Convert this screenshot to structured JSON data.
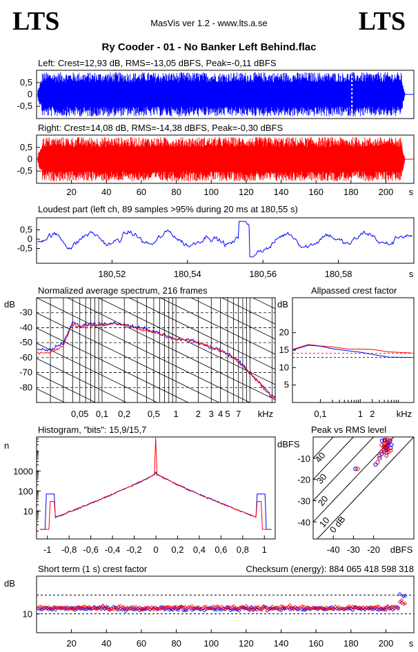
{
  "header": {
    "logo_left": "LTS",
    "logo_right": "LTS",
    "app_title": "MasVis ver 1.2 - www.lts.a.se",
    "track_title": "Ry Cooder - 01 - No Banker Left Behind.flac"
  },
  "colors": {
    "left": "#0000ff",
    "right": "#ff0000",
    "frame": "#000000"
  },
  "chart_data": [
    {
      "type": "area",
      "name": "left-waveform",
      "title": "Left: Crest=12,93 dB, RMS=-13,05 dBFS, Peak=-0,11 dBFS",
      "yticks": [
        "0,5",
        "0",
        "-0,5"
      ],
      "ylim": [
        -1,
        1
      ],
      "xlim": [
        0,
        216
      ],
      "marker_x": 180.55
    },
    {
      "type": "area",
      "name": "right-waveform",
      "title": "Right: Crest=14,08 dB, RMS=-14,38 dBFS, Peak=-0,30 dBFS",
      "yticks": [
        "0,5",
        "0",
        "-0,5"
      ],
      "ylim": [
        -1,
        1
      ],
      "xlim": [
        0,
        216
      ],
      "xticks": [
        "20",
        "40",
        "60",
        "80",
        "100",
        "120",
        "140",
        "160",
        "180",
        "200"
      ],
      "xunit": "s"
    },
    {
      "type": "line",
      "name": "loudest-part",
      "title": "Loudest part (left  ch, 89 samples >95% during 20 ms at 180,55 s)",
      "yticks": [
        "0,5",
        "0",
        "-0,5"
      ],
      "xlim": [
        180.5,
        180.6
      ],
      "xticks": [
        "180,52",
        "180,54",
        "180,56",
        "180,58"
      ],
      "xunit": "s"
    },
    {
      "type": "line",
      "name": "average-spectrum",
      "title": "Normalized average spectrum, 216 frames",
      "ylabel": "dB",
      "yticks": [
        "-30",
        "-40",
        "-50",
        "-60",
        "-70",
        "-80"
      ],
      "ylim": [
        -90,
        -20
      ],
      "xticks": [
        "0,05",
        "0,1",
        "0,2",
        "0,5",
        "1",
        "2",
        "3",
        "4",
        "5",
        "7"
      ],
      "xunit": "kHz",
      "series": [
        {
          "name": "left",
          "x": [
            0.02,
            0.03,
            0.04,
            0.05,
            0.07,
            0.1,
            0.15,
            0.2,
            0.3,
            0.5,
            0.7,
            1,
            1.5,
            2,
            3,
            4,
            5,
            7,
            10,
            14,
            20
          ],
          "values": [
            -55,
            -50,
            -36,
            -39,
            -37,
            -38,
            -37,
            -38,
            -40,
            -42,
            -45,
            -48,
            -48,
            -50,
            -53,
            -55,
            -58,
            -62,
            -70,
            -78,
            -86
          ]
        },
        {
          "name": "right",
          "x": [
            0.02,
            0.03,
            0.04,
            0.05,
            0.07,
            0.1,
            0.15,
            0.2,
            0.3,
            0.5,
            0.7,
            1,
            1.5,
            2,
            3,
            4,
            5,
            7,
            10,
            14,
            20
          ],
          "values": [
            -57,
            -52,
            -37,
            -40,
            -38,
            -38,
            -37,
            -38,
            -41,
            -43,
            -45,
            -48,
            -48,
            -50,
            -53,
            -55,
            -57,
            -62,
            -70,
            -78,
            -87
          ]
        }
      ]
    },
    {
      "type": "line",
      "name": "allpassed-crest",
      "title": "Allpassed crest factor",
      "ylabel": "dB",
      "yticks": [
        "20",
        "15",
        "10",
        "5"
      ],
      "ylim": [
        0,
        30
      ],
      "xticks": [
        "0,1",
        "1",
        "2"
      ],
      "xunit": "kHz",
      "series": [
        {
          "name": "left",
          "x": [
            0.02,
            0.05,
            0.1,
            0.2,
            0.5,
            1,
            2,
            5,
            20
          ],
          "values": [
            15.0,
            16.4,
            16.1,
            15.4,
            14.8,
            14.4,
            13.8,
            13.0,
            12.9
          ]
        },
        {
          "name": "right",
          "x": [
            0.02,
            0.05,
            0.1,
            0.2,
            0.5,
            1,
            2,
            5,
            20
          ],
          "values": [
            15.2,
            16.6,
            16.2,
            15.9,
            15.3,
            15.3,
            15.2,
            14.5,
            14.2
          ]
        }
      ],
      "reference_lines": [
        14.1,
        12.9
      ]
    },
    {
      "type": "line",
      "name": "histogram",
      "title": "Histogram, \"bits\": 15,9/15,7",
      "ylabel": "n",
      "yticks": [
        "1000",
        "100",
        "10"
      ],
      "xticks": [
        "-1",
        "-0,8",
        "-0,6",
        "-0,4",
        "-0,2",
        "0",
        "0,2",
        "0,4",
        "0,6",
        "0,8",
        "1"
      ]
    },
    {
      "type": "scatter",
      "name": "peak-vs-rms",
      "title": "Peak vs RMS level",
      "ylabel": "dBFS",
      "xunit": "dBFS",
      "yticks": [
        "-10",
        "-20",
        "-30",
        "-40"
      ],
      "xticks": [
        "-40",
        "-30",
        "-20"
      ],
      "diagonal_labels": [
        "40",
        "30",
        "20",
        "10",
        "0 dB"
      ],
      "series": [
        {
          "name": "left",
          "x": [
            -29,
            -19,
            -17,
            -16,
            -15,
            -14,
            -13,
            -12
          ],
          "values": [
            -15,
            -13,
            -10,
            -8,
            -6,
            -5,
            -3,
            -2
          ]
        },
        {
          "name": "right",
          "x": [
            -28,
            -18,
            -17,
            -16,
            -15,
            -14,
            -13
          ],
          "values": [
            -15,
            -12,
            -9,
            -7,
            -6,
            -4,
            -3
          ]
        }
      ]
    },
    {
      "type": "scatter",
      "name": "short-term-crest",
      "title": "Short term (1 s) crest factor",
      "checksum_label": "Checksum (energy):   884 065 418 598 318",
      "ylabel": "dB",
      "yticks": [
        "10"
      ],
      "xticks": [
        "20",
        "40",
        "60",
        "80",
        "100",
        "120",
        "140",
        "160",
        "180",
        "200"
      ],
      "xunit": "s",
      "xlim": [
        0,
        216
      ]
    }
  ]
}
